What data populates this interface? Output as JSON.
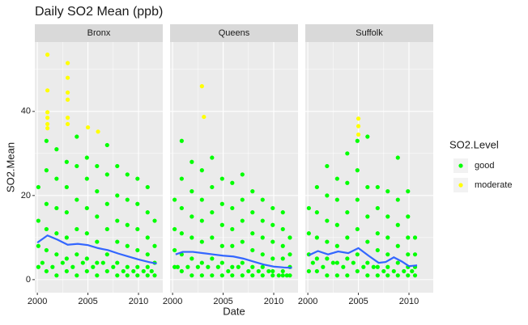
{
  "chart_data": {
    "type": "scatter",
    "title": "Daily SO2 Mean (ppb)",
    "x_label": "Date",
    "y_label": "SO2.Mean",
    "legend_title": "SO2.Level",
    "legend_position": "right",
    "grid": true,
    "series": [
      {
        "name": "good",
        "color": "#00ff00"
      },
      {
        "name": "moderate",
        "color": "#ffff00"
      }
    ],
    "smooth_color": "#3366ff",
    "xlim": [
      1999.75,
      2012.4
    ],
    "xticks": [
      2000,
      2005,
      2010
    ],
    "ylim": [
      -3.1,
      56.5
    ],
    "yticks": [
      0,
      20,
      40
    ],
    "facets": [
      {
        "label": "Bronx",
        "points": [
          {
            "x": [
              2000.1,
              2000.1,
              2000.1,
              2000.1,
              2000.9,
              2000.9,
              2000.9,
              2000.9,
              2000.9,
              2000.9,
              2001.9,
              2001.9,
              2001.9,
              2001.9,
              2001.9,
              2001.9,
              2002.9,
              2002.9,
              2002.9,
              2002.9,
              2002.9,
              2002.9,
              2003.9,
              2003.9,
              2003.9,
              2003.9,
              2003.9,
              2003.9,
              2004.9,
              2004.9,
              2004.9,
              2004.9,
              2004.9,
              2004.9,
              2005.9,
              2005.9,
              2005.9,
              2005.9,
              2005.9,
              2005.9,
              2006.9,
              2006.9,
              2006.9,
              2006.9,
              2006.9,
              2006.9,
              2007.9,
              2007.9,
              2007.9,
              2007.9,
              2007.9,
              2007.9,
              2008.9,
              2008.9,
              2008.9,
              2008.9,
              2008.9,
              2008.9,
              2009.9,
              2009.9,
              2009.9,
              2009.9,
              2009.9,
              2009.9,
              2010.9,
              2010.9,
              2010.9,
              2010.9,
              2010.9,
              2010.9,
              2011.6,
              2011.6,
              2011.6,
              2011.6,
              2000.5,
              2001.5,
              2002.5,
              2003.5,
              2004.5,
              2005.5,
              2006.5,
              2007.5,
              2008.5,
              2009.5,
              2010.5,
              2011.3
            ],
            "values": [
              3,
              8,
              14,
              22,
              2,
              7,
              12,
              18,
              26,
              33,
              1,
              6,
              11,
              17,
              24,
              31,
              2,
              5,
              10,
              16,
              22,
              28,
              1,
              6,
              12,
              19,
              27,
              34,
              2,
              5,
              11,
              17,
              24,
              29,
              1,
              4,
              9,
              15,
              21,
              27,
              2,
              6,
              12,
              18,
              25,
              32,
              1,
              4,
              9,
              14,
              20,
              27,
              1,
              3,
              8,
              13,
              19,
              25,
              1,
              3,
              7,
              12,
              18,
              24,
              1,
              3,
              6,
              10,
              16,
              22,
              1,
              4,
              8,
              14,
              4,
              3,
              4,
              3,
              4,
              3,
              4,
              3,
              2,
              2,
              2,
              2
            ]
          },
          {
            "x": [
              2001,
              2001,
              2001,
              2001,
              2001,
              2001,
              2003,
              2003,
              2003,
              2003,
              2003,
              2003,
              2005,
              2006
            ],
            "values": [
              53.5,
              45,
              39.8,
              38.5,
              37,
              36,
              51.5,
              48,
              44.5,
              42.8,
              38.5,
              37,
              36.2,
              35.2
            ]
          }
        ],
        "smooth": {
          "x": [
            2000,
            2001,
            2002,
            2003,
            2004,
            2005,
            2006,
            2007,
            2008,
            2009,
            2010,
            2011,
            2011.8
          ],
          "values": [
            8.8,
            10.5,
            9.5,
            8.3,
            8.5,
            8.2,
            7.5,
            7,
            6.2,
            5.5,
            4.8,
            4.2,
            3.8
          ]
        }
      },
      {
        "label": "Queens",
        "points": [
          {
            "x": [
              2000.2,
              2000.2,
              2000.2,
              2000.2,
              2000.9,
              2000.9,
              2000.9,
              2000.9,
              2000.9,
              2000.9,
              2001.9,
              2001.9,
              2001.9,
              2001.9,
              2001.9,
              2001.9,
              2002.9,
              2002.9,
              2002.9,
              2002.9,
              2002.9,
              2002.9,
              2003.9,
              2003.9,
              2003.9,
              2003.9,
              2003.9,
              2003.9,
              2004.9,
              2004.9,
              2004.9,
              2004.9,
              2004.9,
              2004.9,
              2005.9,
              2005.9,
              2005.9,
              2005.9,
              2005.9,
              2005.9,
              2006.9,
              2006.9,
              2006.9,
              2006.9,
              2006.9,
              2006.9,
              2007.9,
              2007.9,
              2007.9,
              2007.9,
              2007.9,
              2007.9,
              2008.9,
              2008.9,
              2008.9,
              2008.9,
              2008.9,
              2008.9,
              2009.9,
              2009.9,
              2009.9,
              2009.9,
              2009.9,
              2009.9,
              2010.9,
              2010.9,
              2010.9,
              2010.9,
              2010.9,
              2010.9,
              2011.6,
              2011.6,
              2011.6,
              2011.6,
              2000.5,
              2001.5,
              2002.5,
              2003.5,
              2004.5,
              2005.5,
              2006.5,
              2007.5,
              2008.5,
              2009.5,
              2010.5,
              2011.3
            ],
            "values": [
              3,
              7,
              12,
              19,
              2,
              6,
              11,
              17,
              24,
              33,
              1,
              5,
              10,
              15,
              21,
              28,
              1,
              4,
              9,
              14,
              19,
              26,
              1,
              5,
              10,
              16,
              22,
              29,
              1,
              4,
              8,
              13,
              18,
              24,
              1,
              3,
              8,
              12,
              17,
              23,
              1,
              4,
              9,
              14,
              19,
              25,
              1,
              3,
              7,
              11,
              16,
              21,
              1,
              3,
              6,
              10,
              14,
              19,
              1,
              2,
              5,
              9,
              13,
              17,
              1,
              2,
              5,
              8,
              12,
              16,
              1,
              3,
              6,
              10,
              3,
              3,
              3,
              3,
              3,
              2,
              3,
              2,
              2,
              2,
              1,
              1
            ]
          },
          {
            "x": [
              2002.9,
              2003.1
            ],
            "values": [
              46,
              38.7
            ]
          }
        ],
        "smooth": {
          "x": [
            2000.3,
            2001,
            2002,
            2003,
            2004,
            2005,
            2006,
            2007,
            2008,
            2009,
            2010,
            2011,
            2011.8
          ],
          "values": [
            6,
            6.6,
            6.6,
            6.3,
            6,
            5.7,
            5.5,
            5,
            4.3,
            3.6,
            3.1,
            2.9,
            2.8
          ]
        }
      },
      {
        "label": "Suffolk",
        "points": [
          {
            "x": [
              2000.1,
              2000.1,
              2000.1,
              2000.1,
              2000.9,
              2000.9,
              2000.9,
              2000.9,
              2000.9,
              2001.9,
              2001.9,
              2001.9,
              2001.9,
              2001.9,
              2001.9,
              2002.9,
              2002.9,
              2002.9,
              2002.9,
              2002.9,
              2002.9,
              2003.9,
              2003.9,
              2003.9,
              2003.9,
              2003.9,
              2003.9,
              2004.9,
              2004.9,
              2004.9,
              2004.9,
              2004.9,
              2004.9,
              2005.9,
              2005.9,
              2005.9,
              2005.9,
              2005.9,
              2005.9,
              2006.9,
              2006.9,
              2006.9,
              2006.9,
              2006.9,
              2006.9,
              2007.9,
              2007.9,
              2007.9,
              2007.9,
              2007.9,
              2007.9,
              2008.9,
              2008.9,
              2008.9,
              2008.9,
              2008.9,
              2008.9,
              2009.9,
              2009.9,
              2009.9,
              2009.9,
              2009.9,
              2009.9,
              2010.6,
              2010.6,
              2010.6,
              2010.6,
              2000.5,
              2001.5,
              2002.5,
              2003.5,
              2004.5,
              2005.5,
              2006.5,
              2007.5,
              2008.5,
              2009.5,
              2010.3
            ],
            "values": [
              2,
              6,
              11,
              17,
              2,
              5,
              10,
              16,
              22,
              1,
              5,
              9,
              14,
              20,
              27,
              1,
              4,
              8,
              13,
              19,
              24,
              1,
              5,
              10,
              16,
              23,
              30,
              2,
              6,
              12,
              19,
              26,
              33,
              1,
              4,
              9,
              15,
              22,
              34,
              1,
              3,
              7,
              11,
              17,
              22,
              1,
              3,
              6,
              10,
              15,
              21,
              1,
              4,
              8,
              13,
              19,
              29,
              1,
              3,
              6,
              10,
              15,
              21,
              1,
              3,
              6,
              10,
              4,
              3,
              4,
              3,
              4,
              3,
              3,
              2,
              2,
              2,
              2
            ]
          },
          {
            "x": [
              2005,
              2005,
              2005
            ],
            "values": [
              38.3,
              36.5,
              34.5
            ]
          }
        ],
        "smooth": {
          "x": [
            2000.1,
            2001,
            2002,
            2003,
            2004,
            2005,
            2006,
            2007,
            2007.7,
            2008.5,
            2009.3,
            2010,
            2010.8
          ],
          "values": [
            5.8,
            6.8,
            6,
            6.7,
            6.3,
            7.5,
            5.7,
            4,
            4.2,
            5.3,
            4.3,
            3.2,
            3.4
          ]
        }
      }
    ]
  }
}
